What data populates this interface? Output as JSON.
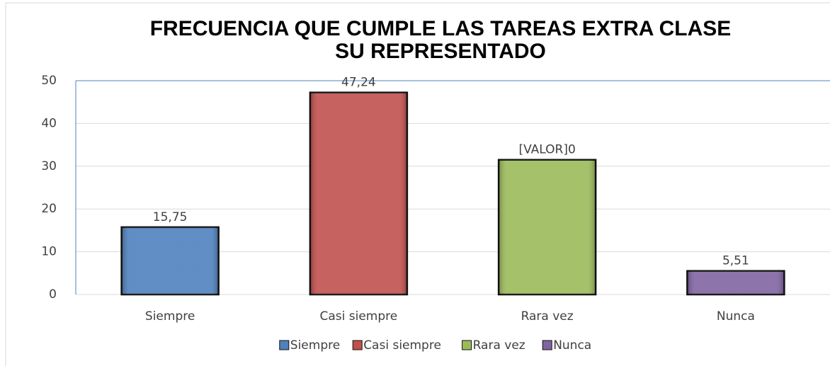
{
  "chart_data": {
    "type": "bar",
    "title": [
      "FRECUENCIA QUE CUMPLE LAS TAREAS EXTRA CLASE",
      "SU REPRESENTADO"
    ],
    "categories": [
      "Siempre",
      "Casi siempre",
      "Rara vez",
      "Nunca"
    ],
    "values": [
      15.75,
      47.24,
      31.5,
      5.51
    ],
    "value_labels": [
      "15,75",
      "47,24",
      "[VALOR]0",
      "5,51"
    ],
    "colors": [
      "#4f81bd",
      "#c0504d",
      "#9bbb59",
      "#8064a2"
    ],
    "ylim": [
      0,
      50
    ],
    "yticks": [
      0,
      10,
      20,
      30,
      40,
      50
    ],
    "grid": true,
    "legend": "bottom"
  }
}
